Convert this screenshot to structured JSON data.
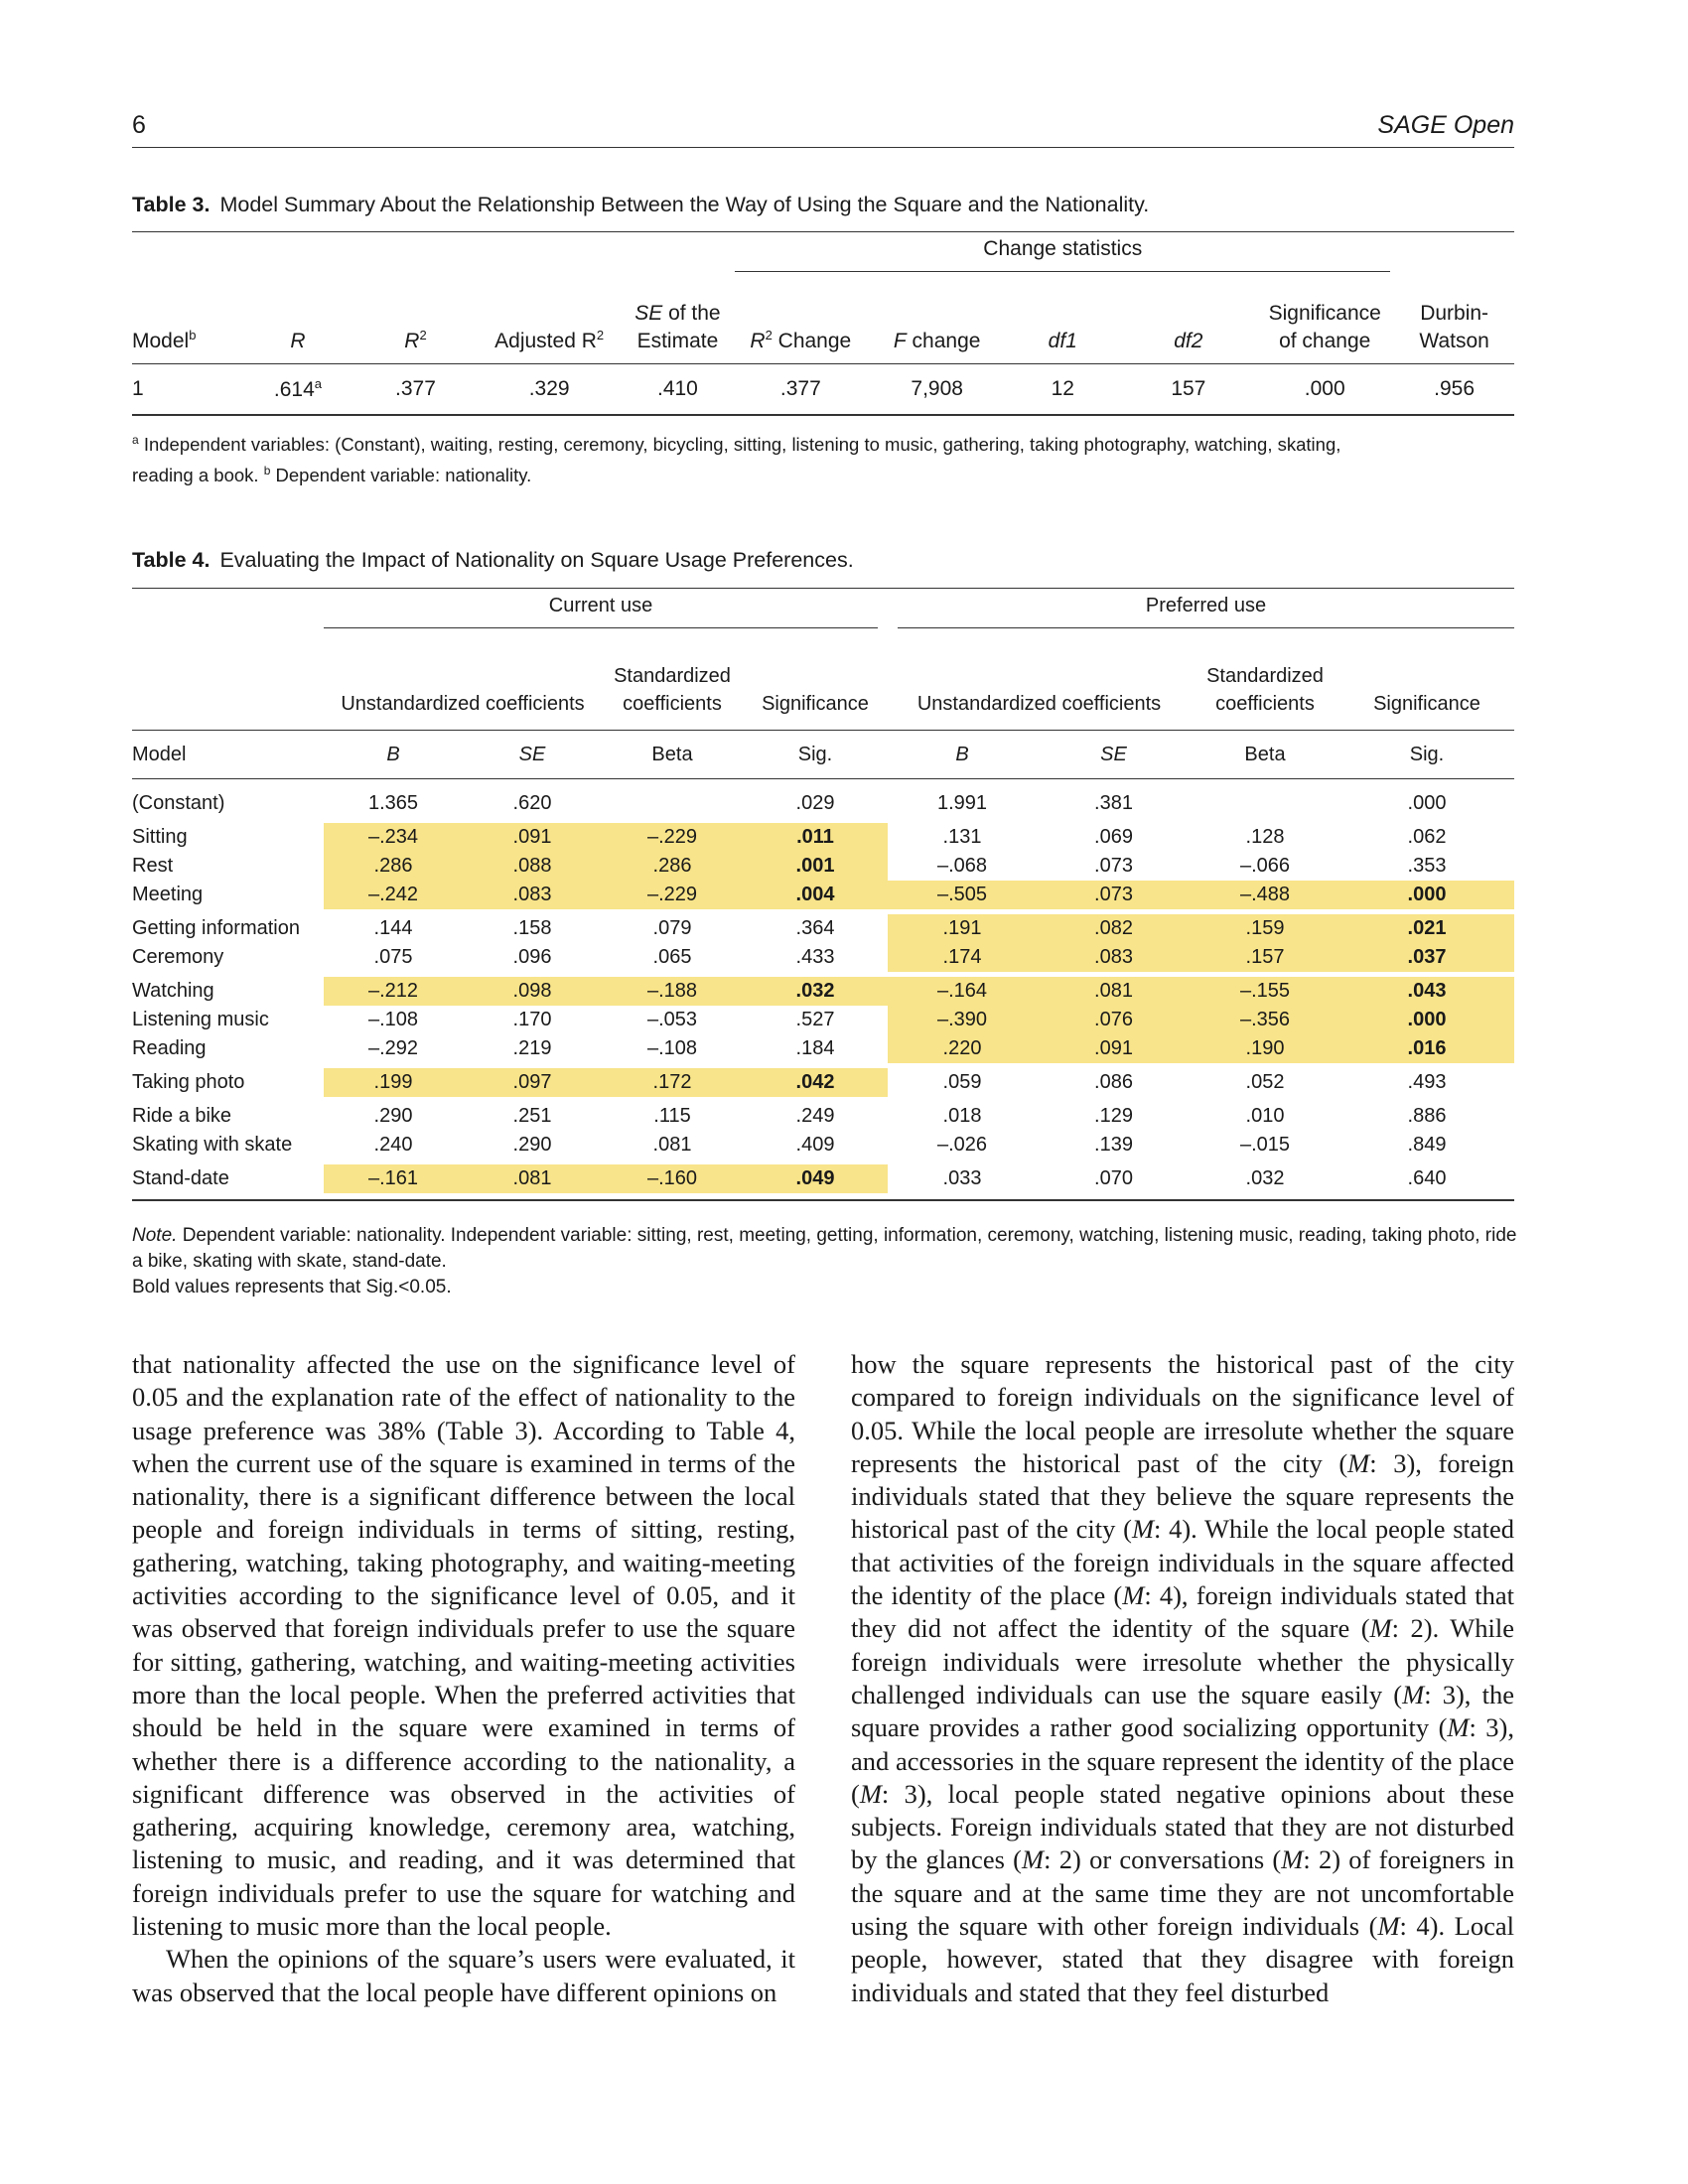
{
  "header": {
    "page_number": "6",
    "journal": "SAGE Open"
  },
  "table3": {
    "label": "Table 3.",
    "caption": "Model Summary About the Relationship Between the Way of Using the Square and the Nationality.",
    "group_header": "Change statistics",
    "columns": {
      "model": "Model",
      "model_sup": "b",
      "r": "R",
      "r2": "R",
      "r2_sup": "2",
      "adj": "Adjusted R",
      "adj_sup": "2",
      "se_line1": "SE",
      "se_line1_rest": " of the",
      "se_line2": "Estimate",
      "r2chg": "R",
      "r2chg_sup": "2",
      "r2chg_rest": " Change",
      "fchg": "F",
      "fchg_rest": " change",
      "df1": "df1",
      "df2": "df2",
      "sig_line1": "Significance",
      "sig_line2": "of change",
      "dw_line1": "Durbin-",
      "dw_line2": "Watson"
    },
    "row": {
      "model": "1",
      "r": ".614",
      "r_sup": "a",
      "r2": ".377",
      "adj": ".329",
      "se": ".410",
      "r2chg": ".377",
      "fchg": "7,908",
      "df1": "12",
      "df2": "157",
      "sig": ".000",
      "dw": ".956"
    },
    "footnote_a_mark": "a",
    "footnote_a": "Independent variables: (Constant), waiting, resting, ceremony, bicycling, sitting, listening to music, gathering, taking photography, watching, skating,",
    "footnote_a_cont": "reading a book.",
    "footnote_b_mark": "b",
    "footnote_b": "Dependent variable: nationality."
  },
  "table4": {
    "label": "Table 4.",
    "caption": "Evaluating the Impact of Nationality on Square Usage Preferences.",
    "group_current": "Current use",
    "group_preferred": "Preferred use",
    "h_unstd": "Unstandardized coefficients",
    "h_std1": "Standardized",
    "h_std2": "coefficients",
    "h_sig": "Significance",
    "h_model": "Model",
    "u_b": "B",
    "u_se": "SE",
    "u_beta": "Beta",
    "u_sig": "Sig.",
    "highlight_color": "#f8e48a",
    "rows": [
      {
        "name": "(Constant)",
        "cb": "1.365",
        "cse": ".620",
        "cbeta": "",
        "csig": ".029",
        "pb": "1.991",
        "pse": ".381",
        "pbeta": "",
        "psig": ".000"
      },
      {
        "name": "Sitting",
        "cb": "–.234",
        "cse": ".091",
        "cbeta": "–.229",
        "csig": ".011",
        "pb": ".131",
        "pse": ".069",
        "pbeta": ".128",
        "psig": ".062"
      },
      {
        "name": "Rest",
        "cb": ".286",
        "cse": ".088",
        "cbeta": ".286",
        "csig": ".001",
        "pb": "–.068",
        "pse": ".073",
        "pbeta": "–.066",
        "psig": ".353"
      },
      {
        "name": "Meeting",
        "cb": "–.242",
        "cse": ".083",
        "cbeta": "–.229",
        "csig": ".004",
        "pb": "–.505",
        "pse": ".073",
        "pbeta": "–.488",
        "psig": ".000"
      },
      {
        "name": "Getting information",
        "cb": ".144",
        "cse": ".158",
        "cbeta": ".079",
        "csig": ".364",
        "pb": ".191",
        "pse": ".082",
        "pbeta": ".159",
        "psig": ".021"
      },
      {
        "name": "Ceremony",
        "cb": ".075",
        "cse": ".096",
        "cbeta": ".065",
        "csig": ".433",
        "pb": ".174",
        "pse": ".083",
        "pbeta": ".157",
        "psig": ".037"
      },
      {
        "name": "Watching",
        "cb": "–.212",
        "cse": ".098",
        "cbeta": "–.188",
        "csig": ".032",
        "pb": "–.164",
        "pse": ".081",
        "pbeta": "–.155",
        "psig": ".043"
      },
      {
        "name": "Listening music",
        "cb": "–.108",
        "cse": ".170",
        "cbeta": "–.053",
        "csig": ".527",
        "pb": "–.390",
        "pse": ".076",
        "pbeta": "–.356",
        "psig": ".000"
      },
      {
        "name": "Reading",
        "cb": "–.292",
        "cse": ".219",
        "cbeta": "–.108",
        "csig": ".184",
        "pb": ".220",
        "pse": ".091",
        "pbeta": ".190",
        "psig": ".016"
      },
      {
        "name": "Taking photo",
        "cb": ".199",
        "cse": ".097",
        "cbeta": ".172",
        "csig": ".042",
        "pb": ".059",
        "pse": ".086",
        "pbeta": ".052",
        "psig": ".493"
      },
      {
        "name": "Ride a bike",
        "cb": ".290",
        "cse": ".251",
        "cbeta": ".115",
        "csig": ".249",
        "pb": ".018",
        "pse": ".129",
        "pbeta": ".010",
        "psig": ".886"
      },
      {
        "name": "Skating with skate",
        "cb": ".240",
        "cse": ".290",
        "cbeta": ".081",
        "csig": ".409",
        "pb": "–.026",
        "pse": ".139",
        "pbeta": "–.015",
        "psig": ".849"
      },
      {
        "name": "Stand-date",
        "cb": "–.161",
        "cse": ".081",
        "cbeta": "–.160",
        "csig": ".049",
        "pb": ".033",
        "pse": ".070",
        "pbeta": ".032",
        "psig": ".640"
      }
    ],
    "note_label": "Note.",
    "note_text": "Dependent variable: nationality. Independent variable: sitting, rest, meeting, getting, information, ceremony, watching, listening music, reading, taking photo, ride a bike, skating with skate, stand-date.",
    "note_bold": "Bold values represents that Sig.<0.05."
  },
  "body": {
    "left_p1": "that nationality affected the use on the significance level of 0.05 and the explanation rate of the effect of nationality to the usage preference was 38% (Table 3). According to Table 4, when the current use of the square is examined in terms of the nationality, there is a significant difference between the local people and foreign individuals in terms of sitting, resting, gathering, watching, taking photography, and waiting-meeting activities according to the significance level of 0.05, and it was observed that foreign individuals prefer to use the square for sitting, gathering, watching, and waiting-meeting activities more than the local people. When the preferred activities that should be held in the square were examined in terms of whether there is a difference according to the nationality, a significant difference was observed in the activities of gathering, acquiring knowledge, ceremony area, watching, listening to music, and reading, and it was determined that foreign individuals prefer to use the square for watching and listening to music more than the local people.",
    "left_p2": "When the opinions of the square’s users were evaluated, it was observed that the local people have different opinions on",
    "right_p1_a": "how the square represents the historical past of the city compared to foreign individuals on the significance level of 0.05. While the local people are irresolute whether the square represents the historical past of the city (",
    "right_p1_b": ": 3), foreign individuals stated that they believe the square represents the historical past of the city (",
    "right_p1_c": ": 4). While the local people stated that activities of the foreign individuals in the square affected the identity of the place (",
    "right_p1_d": ": 4), foreign individuals stated that they did not affect the identity of the square (",
    "right_p1_e": ": 2). While foreign individuals were irresolute whether the physically challenged individuals can use the square easily (",
    "right_p1_f": ": 3), the square provides a rather good socializing opportunity (",
    "right_p1_g": ": 3), and accessories in the square represent the identity of the place (",
    "right_p1_h": ": 3), local people stated negative opinions about these subjects. Foreign individuals stated that they are not disturbed by the glances (",
    "right_p1_i": ": 2) or conversations (",
    "right_p1_j": ": 2) of foreigners in the square and at the same time they are not uncomfortable using the square with other foreign individuals (",
    "right_p1_k": ": 4). Local people, however, stated that they disagree with foreign individuals and stated that they feel disturbed",
    "mean_symbol": "M"
  }
}
